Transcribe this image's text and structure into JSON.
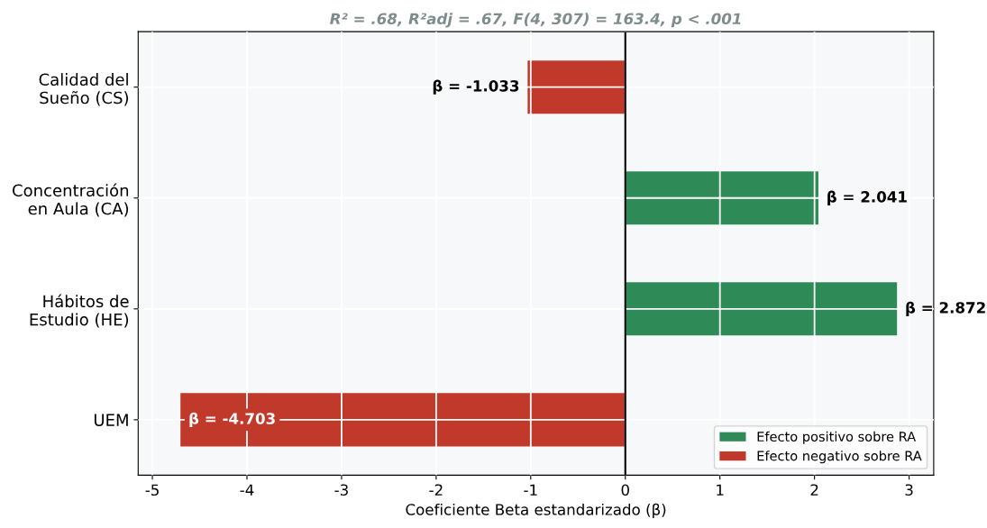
{
  "chart_data": {
    "type": "bar",
    "orientation": "horizontal",
    "title": "R² = .68, R²adj = .67, F(4, 307) = 163.4, p < .001",
    "xlabel": "Coeficiente Beta estandarizado (β)",
    "categories": [
      "Calidad del\nSueño (CS)",
      "Concentración\nen Aula (CA)",
      "Hábitos de\nEstudio (HE)",
      "UEM"
    ],
    "series": [
      {
        "name": "Efecto positivo sobre RA",
        "color": "#2e8b57",
        "values": [
          null,
          2.041,
          2.872,
          null
        ]
      },
      {
        "name": "Efecto negativo sobre RA",
        "color": "#c0392b",
        "values": [
          -1.033,
          null,
          null,
          -4.703
        ]
      }
    ],
    "value_labels": [
      "β = -1.033",
      "β = 2.041",
      "β = 2.872",
      "β = -4.703"
    ],
    "ref_lines": [
      {
        "axis": "x",
        "value": 0,
        "color": "#000000"
      }
    ],
    "xlim": [
      -5.15,
      3.26
    ],
    "xticks": [
      -5,
      -4,
      -3,
      -2,
      -1,
      0,
      1,
      2,
      3
    ],
    "grid": true,
    "legend": "bottom right"
  }
}
